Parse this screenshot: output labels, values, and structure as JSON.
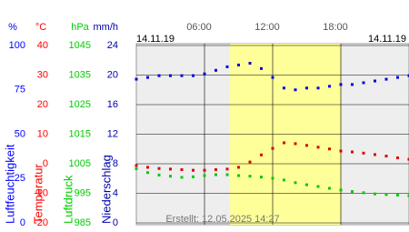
{
  "chart_data": {
    "type": "line",
    "date_left": "14.11.19",
    "date_right": "14.11.19",
    "footer": "Erstellt: 12.05.2025 14:27",
    "xlim": [
      0,
      24
    ],
    "xticks": [
      {
        "value": 6,
        "label": "06:00"
      },
      {
        "value": 12,
        "label": "12:00"
      },
      {
        "value": 18,
        "label": "18:00"
      }
    ],
    "daylight": [
      8.25,
      18
    ],
    "axes": [
      {
        "unit": "%",
        "label": "Luftfeuchtigkeit",
        "color": "#0000ff",
        "ylim": [
          0,
          100
        ],
        "yticks": [
          0,
          25,
          50,
          75,
          100
        ]
      },
      {
        "unit": "°C",
        "label": "Temperatur",
        "color": "#ff0000",
        "ylim": [
          -20,
          40
        ],
        "yticks": [
          -20,
          -10,
          0,
          10,
          20,
          30,
          40
        ]
      },
      {
        "unit": "hPa",
        "label": "Luftdruck",
        "color": "#00cc00",
        "ylim": [
          985,
          1045
        ],
        "yticks": [
          985,
          995,
          1005,
          1015,
          1025,
          1035,
          1045
        ]
      },
      {
        "unit": "mm/h",
        "label": "Niederschlag",
        "color": "#0000aa",
        "ylim": [
          0,
          24
        ],
        "yticks": [
          0,
          4,
          8,
          12,
          16,
          20,
          24
        ]
      }
    ],
    "x": [
      0,
      1,
      2,
      3,
      4,
      5,
      6,
      7,
      8,
      9,
      10,
      11,
      12,
      13,
      14,
      15,
      16,
      17,
      18,
      19,
      20,
      21,
      22,
      23,
      24
    ],
    "series": [
      {
        "axis": 0,
        "color": "#0000dd",
        "values": [
          81,
          82,
          83,
          83,
          83,
          83,
          84,
          86,
          88,
          89,
          90,
          87,
          82,
          76,
          75,
          76,
          76,
          77,
          78,
          78,
          79,
          80,
          81,
          82,
          83
        ]
      },
      {
        "axis": 1,
        "color": "#dd0000",
        "values": [
          -0.6,
          -1.2,
          -1.6,
          -1.8,
          -2,
          -2.2,
          -2.2,
          -2,
          -1.8,
          -1.2,
          0.6,
          3,
          5.2,
          7.1,
          6.8,
          6.2,
          5.6,
          5,
          4.3,
          4,
          3.6,
          3.1,
          2.6,
          2,
          1.5
        ]
      },
      {
        "axis": 2,
        "color": "#00cc00",
        "values": [
          1003.3,
          1002,
          1001.2,
          1000.8,
          1000.4,
          1000.6,
          1001,
          1001.3,
          1001.3,
          1001,
          1000.8,
          1000.5,
          1000.1,
          999.5,
          998.6,
          997.9,
          997.3,
          996.7,
          996.1,
          995.6,
          995.2,
          994.8,
          994.6,
          994.4,
          994.2
        ]
      }
    ]
  }
}
